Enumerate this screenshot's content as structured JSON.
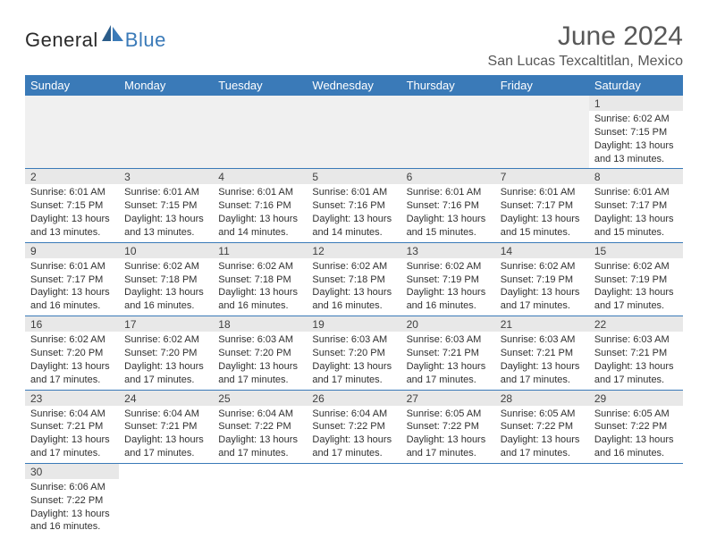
{
  "brand": {
    "main": "General",
    "sub": "Blue"
  },
  "title": "June 2024",
  "location": "San Lucas Texcaltitlan, Mexico",
  "colors": {
    "header_bg": "#3a7ab8",
    "header_text": "#ffffff",
    "daynum_bg": "#e8e8e8",
    "row_divider": "#3a7ab8",
    "text": "#303030",
    "title_text": "#585858"
  },
  "day_labels": [
    "Sunday",
    "Monday",
    "Tuesday",
    "Wednesday",
    "Thursday",
    "Friday",
    "Saturday"
  ],
  "weeks": [
    [
      null,
      null,
      null,
      null,
      null,
      null,
      {
        "n": "1",
        "sr": "Sunrise: 6:02 AM",
        "ss": "Sunset: 7:15 PM",
        "dl": "Daylight: 13 hours and 13 minutes."
      }
    ],
    [
      {
        "n": "2",
        "sr": "Sunrise: 6:01 AM",
        "ss": "Sunset: 7:15 PM",
        "dl": "Daylight: 13 hours and 13 minutes."
      },
      {
        "n": "3",
        "sr": "Sunrise: 6:01 AM",
        "ss": "Sunset: 7:15 PM",
        "dl": "Daylight: 13 hours and 13 minutes."
      },
      {
        "n": "4",
        "sr": "Sunrise: 6:01 AM",
        "ss": "Sunset: 7:16 PM",
        "dl": "Daylight: 13 hours and 14 minutes."
      },
      {
        "n": "5",
        "sr": "Sunrise: 6:01 AM",
        "ss": "Sunset: 7:16 PM",
        "dl": "Daylight: 13 hours and 14 minutes."
      },
      {
        "n": "6",
        "sr": "Sunrise: 6:01 AM",
        "ss": "Sunset: 7:16 PM",
        "dl": "Daylight: 13 hours and 15 minutes."
      },
      {
        "n": "7",
        "sr": "Sunrise: 6:01 AM",
        "ss": "Sunset: 7:17 PM",
        "dl": "Daylight: 13 hours and 15 minutes."
      },
      {
        "n": "8",
        "sr": "Sunrise: 6:01 AM",
        "ss": "Sunset: 7:17 PM",
        "dl": "Daylight: 13 hours and 15 minutes."
      }
    ],
    [
      {
        "n": "9",
        "sr": "Sunrise: 6:01 AM",
        "ss": "Sunset: 7:17 PM",
        "dl": "Daylight: 13 hours and 16 minutes."
      },
      {
        "n": "10",
        "sr": "Sunrise: 6:02 AM",
        "ss": "Sunset: 7:18 PM",
        "dl": "Daylight: 13 hours and 16 minutes."
      },
      {
        "n": "11",
        "sr": "Sunrise: 6:02 AM",
        "ss": "Sunset: 7:18 PM",
        "dl": "Daylight: 13 hours and 16 minutes."
      },
      {
        "n": "12",
        "sr": "Sunrise: 6:02 AM",
        "ss": "Sunset: 7:18 PM",
        "dl": "Daylight: 13 hours and 16 minutes."
      },
      {
        "n": "13",
        "sr": "Sunrise: 6:02 AM",
        "ss": "Sunset: 7:19 PM",
        "dl": "Daylight: 13 hours and 16 minutes."
      },
      {
        "n": "14",
        "sr": "Sunrise: 6:02 AM",
        "ss": "Sunset: 7:19 PM",
        "dl": "Daylight: 13 hours and 17 minutes."
      },
      {
        "n": "15",
        "sr": "Sunrise: 6:02 AM",
        "ss": "Sunset: 7:19 PM",
        "dl": "Daylight: 13 hours and 17 minutes."
      }
    ],
    [
      {
        "n": "16",
        "sr": "Sunrise: 6:02 AM",
        "ss": "Sunset: 7:20 PM",
        "dl": "Daylight: 13 hours and 17 minutes."
      },
      {
        "n": "17",
        "sr": "Sunrise: 6:02 AM",
        "ss": "Sunset: 7:20 PM",
        "dl": "Daylight: 13 hours and 17 minutes."
      },
      {
        "n": "18",
        "sr": "Sunrise: 6:03 AM",
        "ss": "Sunset: 7:20 PM",
        "dl": "Daylight: 13 hours and 17 minutes."
      },
      {
        "n": "19",
        "sr": "Sunrise: 6:03 AM",
        "ss": "Sunset: 7:20 PM",
        "dl": "Daylight: 13 hours and 17 minutes."
      },
      {
        "n": "20",
        "sr": "Sunrise: 6:03 AM",
        "ss": "Sunset: 7:21 PM",
        "dl": "Daylight: 13 hours and 17 minutes."
      },
      {
        "n": "21",
        "sr": "Sunrise: 6:03 AM",
        "ss": "Sunset: 7:21 PM",
        "dl": "Daylight: 13 hours and 17 minutes."
      },
      {
        "n": "22",
        "sr": "Sunrise: 6:03 AM",
        "ss": "Sunset: 7:21 PM",
        "dl": "Daylight: 13 hours and 17 minutes."
      }
    ],
    [
      {
        "n": "23",
        "sr": "Sunrise: 6:04 AM",
        "ss": "Sunset: 7:21 PM",
        "dl": "Daylight: 13 hours and 17 minutes."
      },
      {
        "n": "24",
        "sr": "Sunrise: 6:04 AM",
        "ss": "Sunset: 7:21 PM",
        "dl": "Daylight: 13 hours and 17 minutes."
      },
      {
        "n": "25",
        "sr": "Sunrise: 6:04 AM",
        "ss": "Sunset: 7:22 PM",
        "dl": "Daylight: 13 hours and 17 minutes."
      },
      {
        "n": "26",
        "sr": "Sunrise: 6:04 AM",
        "ss": "Sunset: 7:22 PM",
        "dl": "Daylight: 13 hours and 17 minutes."
      },
      {
        "n": "27",
        "sr": "Sunrise: 6:05 AM",
        "ss": "Sunset: 7:22 PM",
        "dl": "Daylight: 13 hours and 17 minutes."
      },
      {
        "n": "28",
        "sr": "Sunrise: 6:05 AM",
        "ss": "Sunset: 7:22 PM",
        "dl": "Daylight: 13 hours and 17 minutes."
      },
      {
        "n": "29",
        "sr": "Sunrise: 6:05 AM",
        "ss": "Sunset: 7:22 PM",
        "dl": "Daylight: 13 hours and 16 minutes."
      }
    ],
    [
      {
        "n": "30",
        "sr": "Sunrise: 6:06 AM",
        "ss": "Sunset: 7:22 PM",
        "dl": "Daylight: 13 hours and 16 minutes."
      },
      null,
      null,
      null,
      null,
      null,
      null
    ]
  ]
}
